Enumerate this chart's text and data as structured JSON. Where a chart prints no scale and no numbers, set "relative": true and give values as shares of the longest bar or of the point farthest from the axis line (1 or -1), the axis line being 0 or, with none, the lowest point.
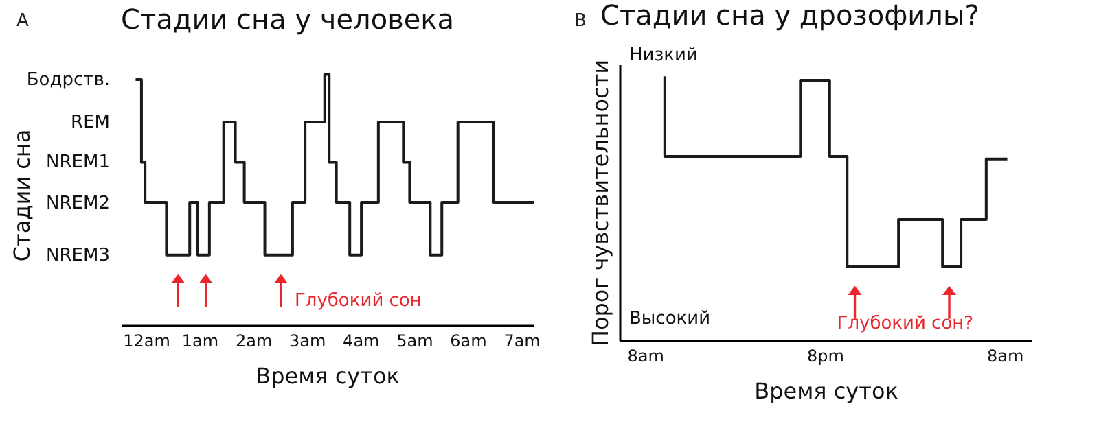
{
  "chart_data": [
    {
      "type": "step",
      "title": "Стадии сна у человека",
      "xlabel": "Время суток",
      "ylabel": "Стадии сна",
      "relative": true,
      "x": [
        "--01-01T23:50",
        "--01-01T23:55",
        "--01-01T23:59",
        "--01-02T00:23",
        "--01-02T00:49",
        "--01-02T00:58",
        "--01-02T01:11",
        "--01-02T01:27",
        "--01-02T01:40",
        "--01-02T01:50",
        "--01-02T02:13",
        "--01-02T02:44",
        "--01-02T02:58",
        "--01-02T03:20",
        "--01-02T03:25",
        "--01-02T03:33",
        "--01-02T03:48",
        "--01-02T04:01",
        "--01-02T04:20",
        "--01-02T04:48",
        "--01-02T04:55",
        "--01-02T05:18",
        "--01-02T05:31",
        "--01-02T05:49",
        "--01-02T06:29",
        "--01-02T07:13"
      ],
      "values": [
        0.98,
        0.65,
        0.49,
        0.28,
        0.49,
        0.28,
        0.49,
        0.81,
        0.65,
        0.49,
        0.28,
        0.49,
        0.81,
        1,
        0.65,
        0.49,
        0.28,
        0.49,
        0.81,
        0.65,
        0.49,
        0.28,
        0.49,
        0.81,
        0.49,
        0.49
      ],
      "color": "#1a1a1a",
      "xlim": [
        "--01-01T23:32",
        "--01-02T07:13"
      ],
      "xticks": [
        {
          "value": "--01-02T00:00",
          "label": "12am"
        },
        {
          "value": "--01-02T01:00",
          "label": "1am"
        },
        {
          "value": "--01-02T02:00",
          "label": "2am"
        },
        {
          "value": "--01-02T03:00",
          "label": "3am"
        },
        {
          "value": "--01-02T04:00",
          "label": "4am"
        },
        {
          "value": "--01-02T05:00",
          "label": "5am"
        },
        {
          "value": "--01-02T06:00",
          "label": "6am"
        },
        {
          "value": "--01-02T07:00",
          "label": "7am"
        }
      ],
      "annotations": [
        "A",
        "Бодрств.",
        "REM",
        "NREM1",
        "NREM2",
        "NREM3",
        {
          "text": "Глубокий сон",
          "x": "--01-02T02:31",
          "y": 0.28
        }
      ]
    },
    {
      "type": "step",
      "title": "Стадии сна у дрозофилы?",
      "xlabel": "Время суток",
      "ylabel": "Порог чувствительности",
      "relative": true,
      "x": [
        "--01-01T09:19",
        "--01-01T09:19",
        "--01-01T18:22",
        "--01-01T20:19",
        "--01-01T21:29",
        "--01-02T00:55",
        "--01-02T03:51",
        "--01-02T05:05",
        "--01-02T06:46",
        "--01-02T08:05"
      ],
      "values": [
        1,
        0.7,
        0.99,
        0.7,
        0.28,
        0.46,
        0.28,
        0.46,
        0.69,
        0.69
      ],
      "color": "#1a1a1a",
      "xlim": [
        "--01-01T06:18",
        "--01-02T09:48"
      ],
      "xticks": [
        {
          "value": "--01-01T08:00",
          "label": "8am"
        },
        {
          "value": "--01-01T20:00",
          "label": "8pm"
        },
        {
          "value": "--01-02T08:00",
          "label": "8am"
        }
      ],
      "annotations": [
        "B",
        "Низкий",
        "Высокий",
        {
          "text": "Глубокий сон?",
          "x": "--01-01T22:00",
          "y": 0.28
        }
      ]
    }
  ]
}
